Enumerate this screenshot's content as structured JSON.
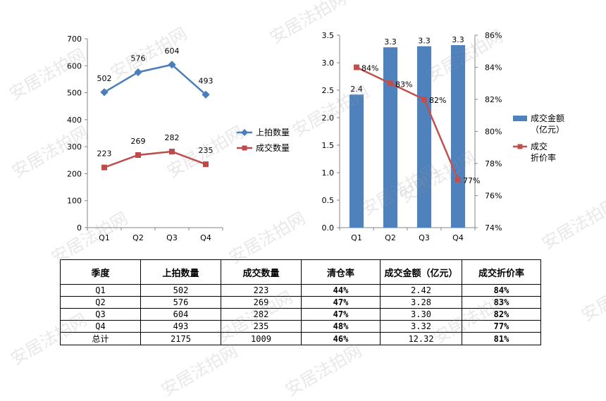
{
  "chart_data": [
    {
      "type": "line",
      "categories": [
        "Q1",
        "Q2",
        "Q3",
        "Q4"
      ],
      "series": [
        {
          "name": "上拍数量",
          "values": [
            502,
            576,
            604,
            493
          ],
          "color": "#4A7EBB"
        },
        {
          "name": "成交数量",
          "values": [
            223,
            269,
            282,
            235
          ],
          "color": "#BE4B48"
        }
      ],
      "ylim": [
        0,
        700
      ],
      "yticks": [
        0,
        100,
        200,
        300,
        400,
        500,
        600,
        700
      ],
      "grid": false,
      "legend": "right"
    },
    {
      "type": "bar+line",
      "categories": [
        "Q1",
        "Q2",
        "Q3",
        "Q4"
      ],
      "series": [
        {
          "name": "成交金额（亿元）",
          "type": "bar",
          "axis": "left",
          "values": [
            2.42,
            3.28,
            3.3,
            3.32
          ],
          "labels": [
            "2.4",
            "3.3",
            "3.3",
            "3.3"
          ],
          "color": "#4F81BD"
        },
        {
          "name": "成交折价率",
          "type": "line",
          "axis": "right",
          "values": [
            84,
            83,
            82,
            77
          ],
          "labels": [
            "84%",
            "83%",
            "82%",
            "77%"
          ],
          "color": "#C0504D"
        }
      ],
      "ylim": [
        0,
        3.5
      ],
      "yticks": [
        "0.0",
        "0.5",
        "1.0",
        "1.5",
        "2.0",
        "2.5",
        "3.0",
        "3.5"
      ],
      "y2lim": [
        74,
        86
      ],
      "y2ticks": [
        "74%",
        "76%",
        "78%",
        "80%",
        "82%",
        "84%",
        "86%"
      ],
      "legend_lines": [
        [
          "成交金额",
          "（亿元）"
        ],
        [
          "成交",
          "折价率"
        ]
      ],
      "grid": false,
      "legend": "right"
    },
    {
      "type": "table",
      "headers": [
        "季度",
        "上拍数量",
        "成交数量",
        "清仓率",
        "成交金额（亿元）",
        "成交折价率"
      ],
      "rows": [
        [
          "Q1",
          "502",
          "223",
          "44%",
          "2.42",
          "84%"
        ],
        [
          "Q2",
          "576",
          "269",
          "47%",
          "3.28",
          "83%"
        ],
        [
          "Q3",
          "604",
          "282",
          "47%",
          "3.30",
          "82%"
        ],
        [
          "Q4",
          "493",
          "235",
          "48%",
          "3.32",
          "77%"
        ],
        [
          "总计",
          "2175",
          "1009",
          "46%",
          "12.32",
          "81%"
        ]
      ]
    }
  ],
  "watermark": "安居法拍网"
}
